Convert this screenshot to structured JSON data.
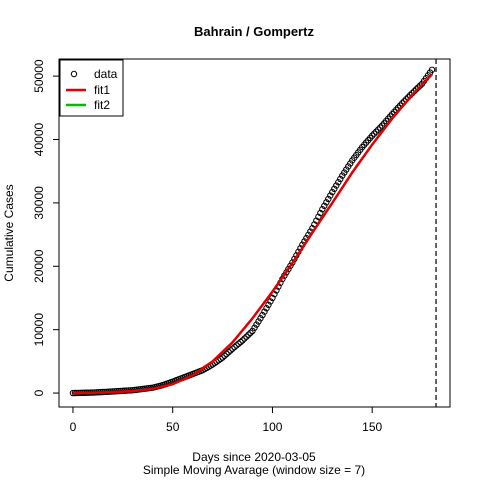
{
  "chart_data": {
    "type": "scatter",
    "title": "Bahrain / Gompertz",
    "xlabel": "Days since 2020-03-05",
    "subtitle": "Simple Moving Avarage (window size = 7)",
    "ylabel": "Cumulative Cases",
    "xlim": [
      -7,
      189
    ],
    "ylim": [
      -2200,
      52700
    ],
    "x_ticks": [
      0,
      50,
      100,
      150
    ],
    "y_ticks": [
      0,
      10000,
      20000,
      30000,
      40000,
      50000
    ],
    "x_tick_labels": [
      "0",
      "50",
      "100",
      "150"
    ],
    "y_tick_labels": [
      "0",
      "10000",
      "20000",
      "30000",
      "40000",
      "50000"
    ],
    "vline_x": 182,
    "legend": {
      "position": "top-left",
      "entries": [
        {
          "label": "data",
          "kind": "point",
          "color": "#000000"
        },
        {
          "label": "fit1",
          "kind": "line",
          "color": "#e00000"
        },
        {
          "label": "fit2",
          "kind": "line",
          "color": "#00bb00"
        }
      ]
    },
    "data_series": {
      "name": "data",
      "color": "#000000",
      "points": [
        [
          0,
          0
        ],
        [
          10,
          80
        ],
        [
          20,
          250
        ],
        [
          30,
          450
        ],
        [
          40,
          850
        ],
        [
          45,
          1250
        ],
        [
          50,
          1800
        ],
        [
          55,
          2400
        ],
        [
          60,
          3000
        ],
        [
          65,
          3600
        ],
        [
          70,
          4500
        ],
        [
          75,
          5600
        ],
        [
          80,
          7000
        ],
        [
          85,
          8300
        ],
        [
          90,
          9800
        ],
        [
          95,
          12300
        ],
        [
          100,
          15000
        ],
        [
          105,
          18000
        ],
        [
          110,
          20600
        ],
        [
          115,
          23400
        ],
        [
          120,
          26000
        ],
        [
          125,
          29000
        ],
        [
          130,
          31700
        ],
        [
          135,
          34300
        ],
        [
          140,
          36700
        ],
        [
          145,
          38800
        ],
        [
          150,
          40600
        ],
        [
          155,
          42200
        ],
        [
          160,
          44000
        ],
        [
          165,
          45700
        ],
        [
          170,
          47300
        ],
        [
          175,
          48800
        ],
        [
          180,
          51000
        ]
      ]
    },
    "fit1": {
      "name": "fit1",
      "color": "#e00000",
      "points": [
        [
          0,
          0
        ],
        [
          10,
          50
        ],
        [
          20,
          150
        ],
        [
          30,
          300
        ],
        [
          40,
          650
        ],
        [
          50,
          1400
        ],
        [
          60,
          2800
        ],
        [
          70,
          5000
        ],
        [
          80,
          8000
        ],
        [
          90,
          11800
        ],
        [
          100,
          16000
        ],
        [
          110,
          20500
        ],
        [
          120,
          25300
        ],
        [
          130,
          30000
        ],
        [
          140,
          34800
        ],
        [
          150,
          39200
        ],
        [
          160,
          43300
        ],
        [
          170,
          47000
        ],
        [
          180,
          50300
        ]
      ]
    },
    "fit2": {
      "name": "fit2",
      "color": "#00bb00",
      "points": []
    }
  }
}
